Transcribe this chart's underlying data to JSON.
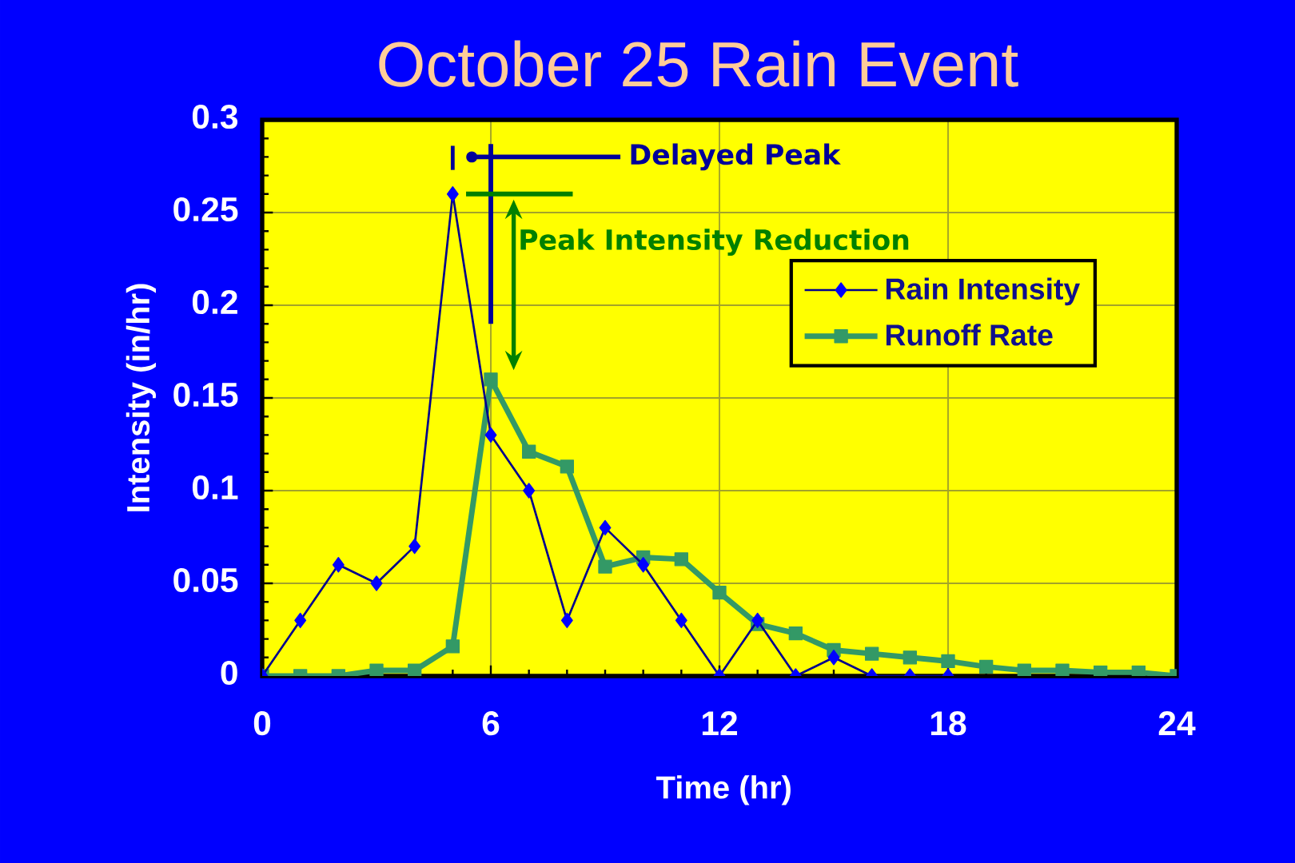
{
  "chart_data": {
    "type": "line",
    "title": "October 25 Rain Event",
    "xlabel": "Time (hr)",
    "ylabel": "Intensity (in/hr)",
    "series": [
      {
        "name": "Rain Intensity",
        "color": "#0000ff",
        "marker": "diamond",
        "x": [
          0,
          1,
          2,
          3,
          4,
          5,
          6,
          7,
          8,
          9,
          10,
          11,
          12,
          13,
          14,
          15,
          16,
          17,
          18
        ],
        "values": [
          0,
          0.03,
          0.06,
          0.05,
          0.07,
          0.26,
          0.13,
          0.1,
          0.03,
          0.08,
          0.06,
          0.03,
          0,
          0.03,
          0,
          0.01,
          0,
          0,
          0
        ]
      },
      {
        "name": "Runoff Rate",
        "color": "#339966",
        "marker": "square",
        "x": [
          0,
          1,
          2,
          3,
          4,
          5,
          6,
          7,
          8,
          9,
          10,
          11,
          12,
          13,
          14,
          15,
          16,
          17,
          18,
          19,
          20,
          21,
          22,
          23,
          24
        ],
        "values": [
          0,
          0,
          0,
          0.003,
          0.003,
          0.016,
          0.16,
          0.121,
          0.113,
          0.059,
          0.064,
          0.063,
          0.045,
          0.028,
          0.023,
          0.014,
          0.012,
          0.01,
          0.008,
          0.005,
          0.003,
          0.003,
          0.002,
          0.002,
          0
        ]
      }
    ],
    "xlim": [
      0,
      24
    ],
    "ylim": [
      0,
      0.3
    ],
    "xticks": [
      0,
      6,
      12,
      18,
      24
    ],
    "yticks": [
      0,
      0.05,
      0.1,
      0.15,
      0.2,
      0.25,
      0.3
    ],
    "grid": true,
    "legend": "top right",
    "annotations": [
      "Delayed Peak",
      "Peak Intensity Reduction"
    ]
  }
}
